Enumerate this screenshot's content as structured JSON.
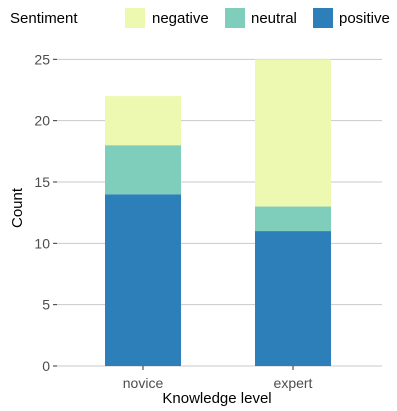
{
  "chart_data": {
    "type": "bar",
    "stacked": true,
    "categories": [
      "novice",
      "expert"
    ],
    "series": [
      {
        "name": "positive",
        "values": [
          14,
          11
        ],
        "color": "#2c7fb8"
      },
      {
        "name": "neutral",
        "values": [
          4,
          2
        ],
        "color": "#7fcdbb"
      },
      {
        "name": "negative",
        "values": [
          4,
          12
        ],
        "color": "#edf8b1"
      }
    ],
    "legend_order": [
      "negative",
      "neutral",
      "positive"
    ],
    "legend_title": "Sentiment",
    "legend_position": "top",
    "xlabel": "Knowledge level",
    "ylabel": "Count",
    "ylim": [
      0,
      26.25
    ],
    "yticks": [
      0,
      5,
      10,
      15,
      20,
      25
    ],
    "grid": "horizontal"
  }
}
